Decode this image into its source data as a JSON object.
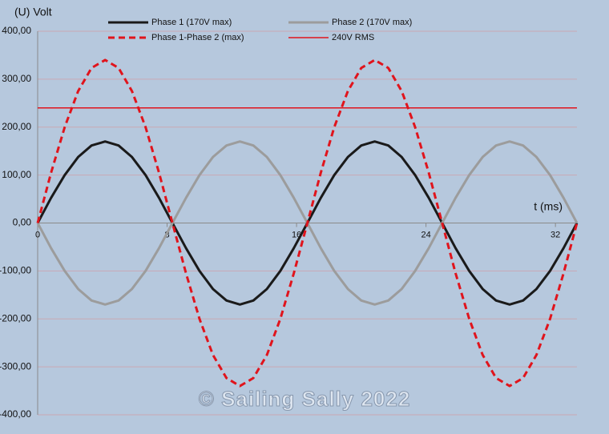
{
  "chart_data": {
    "type": "line",
    "y_label": "(U) Volt",
    "x_label": "t (ms)",
    "watermark": "© Sailing Sally 2022",
    "x": [
      0,
      0.83,
      1.67,
      2.5,
      3.33,
      4.17,
      5,
      5.83,
      6.67,
      7.5,
      8.33,
      9.17,
      10,
      10.83,
      11.67,
      12.5,
      13.33,
      14.17,
      15,
      15.83,
      16.67,
      17.5,
      18.33,
      19.17,
      20,
      20.83,
      21.67,
      22.5,
      23.33,
      24.17,
      25,
      25.83,
      26.67,
      27.5,
      28.33,
      29.17,
      30,
      30.83,
      31.67,
      32.5,
      33.33
    ],
    "series": [
      {
        "name": "Phase 1 (170V max)",
        "color": "#1a1a1a",
        "dashed": false,
        "values": [
          0,
          52.5,
          99.9,
          137.5,
          161.7,
          170,
          161.7,
          137.5,
          99.9,
          52.5,
          0,
          -52.5,
          -99.9,
          -137.5,
          -161.7,
          -170,
          -161.7,
          -137.5,
          -99.9,
          -52.5,
          0,
          52.5,
          99.9,
          137.5,
          161.7,
          170,
          161.7,
          137.5,
          99.9,
          52.5,
          0,
          -52.5,
          -99.9,
          -137.5,
          -161.7,
          -170,
          -161.7,
          -137.5,
          -99.9,
          -52.5,
          0
        ]
      },
      {
        "name": "Phase 2 (170V max)",
        "color": "#9c9c9c",
        "dashed": false,
        "values": [
          0,
          -52.5,
          -99.9,
          -137.5,
          -161.7,
          -170,
          -161.7,
          -137.5,
          -99.9,
          -52.5,
          0,
          52.5,
          99.9,
          137.5,
          161.7,
          170,
          161.7,
          137.5,
          99.9,
          52.5,
          0,
          -52.5,
          -99.9,
          -137.5,
          -161.7,
          -170,
          -161.7,
          -137.5,
          -99.9,
          -52.5,
          0,
          52.5,
          99.9,
          137.5,
          161.7,
          170,
          161.7,
          137.5,
          99.9,
          52.5,
          0
        ]
      },
      {
        "name": "Phase 1-Phase 2 (max)",
        "color": "#e0141c",
        "dashed": true,
        "values": [
          0,
          105,
          199.8,
          275,
          323.4,
          340,
          323.4,
          275,
          199.8,
          105,
          0,
          -105,
          -199.8,
          -275,
          -323.4,
          -340,
          -323.4,
          -275,
          -199.8,
          -105,
          0,
          105,
          199.8,
          275,
          323.4,
          340,
          323.4,
          275,
          199.8,
          105,
          0,
          -105,
          -199.8,
          -275,
          -323.4,
          -340,
          -323.4,
          -275,
          -199.8,
          -105,
          0
        ]
      },
      {
        "name": "240V RMS",
        "color": "#e0141c",
        "dashed": false,
        "values": [
          240,
          240,
          240,
          240,
          240,
          240,
          240,
          240,
          240,
          240,
          240,
          240,
          240,
          240,
          240,
          240,
          240,
          240,
          240,
          240,
          240,
          240,
          240,
          240,
          240,
          240,
          240,
          240,
          240,
          240,
          240,
          240,
          240,
          240,
          240,
          240,
          240,
          240,
          240,
          240,
          240
        ]
      }
    ],
    "xlim": [
      0,
      33.33
    ],
    "xticks": [
      0,
      8,
      16,
      24,
      32
    ],
    "ylim": [
      -400,
      400
    ],
    "yticks": [
      {
        "value": -400,
        "label": "-400,00"
      },
      {
        "value": -300,
        "label": "-300,00"
      },
      {
        "value": -200,
        "label": "-200,00"
      },
      {
        "value": -100,
        "label": "-100,00"
      },
      {
        "value": 0,
        "label": "0,00"
      },
      {
        "value": 100,
        "label": "100,00"
      },
      {
        "value": 200,
        "label": "200,00"
      },
      {
        "value": 300,
        "label": "300,00"
      },
      {
        "value": 400,
        "label": "400,00"
      }
    ],
    "grid": true
  }
}
